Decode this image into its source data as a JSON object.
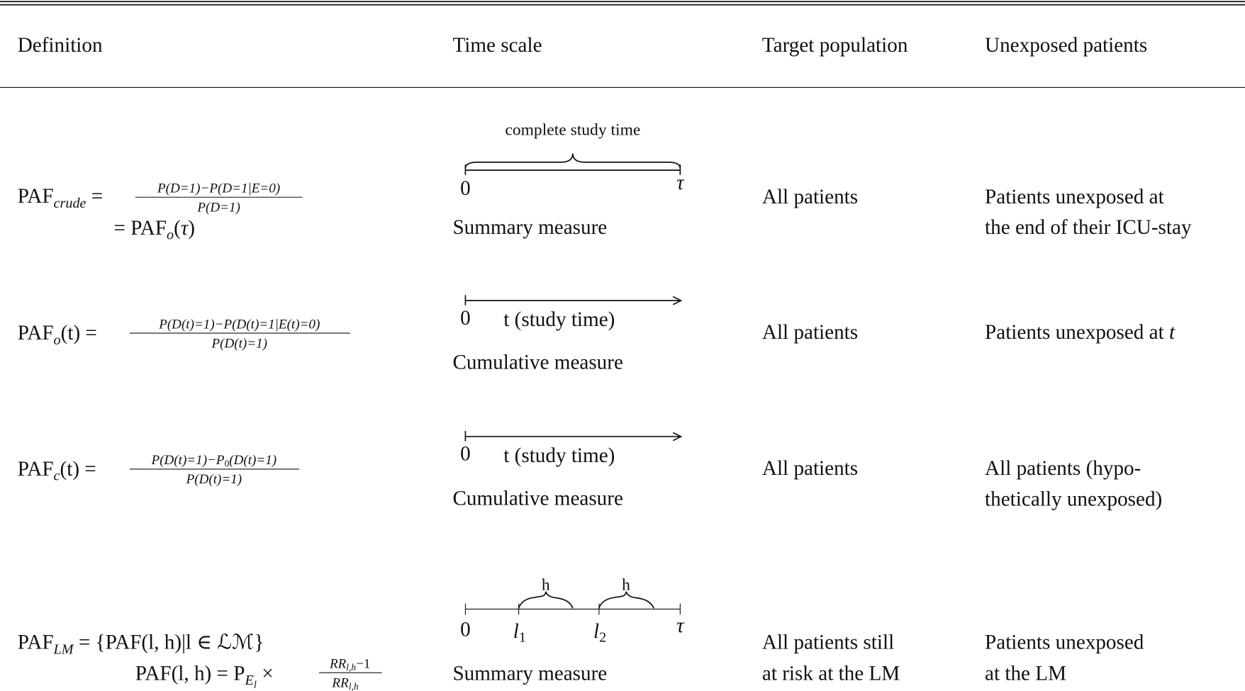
{
  "table": {
    "columns": [
      "Definition",
      "Time scale",
      "Target population",
      "Unexposed patients"
    ],
    "rows": [
      {
        "definition": {
          "line1": [
            "PAF",
            "crude",
            " = "
          ],
          "numerator": [
            "P(D=1)−P(D=1|E=0)"
          ],
          "denominator": [
            "P(D=1)"
          ],
          "line2": [
            "= PAF",
            "o",
            "(",
            "τ",
            ")"
          ]
        },
        "time_scale": {
          "brace_label": "complete study time",
          "start": "0",
          "end": "τ",
          "caption": "Summary measure"
        },
        "target_population": [
          "All patients"
        ],
        "unexposed_patients": [
          "Patients unexposed at",
          "the end of their ICU-stay"
        ]
      },
      {
        "definition": {
          "line1": [
            "PAF",
            "o",
            "(t) = "
          ],
          "numerator": [
            "P(D(t)=1)−P(D(t)=1|E(t)=0)"
          ],
          "denominator": [
            "P(D(t)=1)"
          ]
        },
        "time_scale": {
          "start": "0",
          "axis_label": "t (study time)",
          "caption": "Cumulative measure"
        },
        "target_population": [
          "All patients"
        ],
        "unexposed_patients": [
          [
            "Patients unexposed at ",
            "t"
          ]
        ]
      },
      {
        "definition": {
          "line1": [
            "PAF",
            "c",
            "(t) = "
          ],
          "numerator": [
            "P(D(t)=1)−P",
            "0",
            "(D(t)=1)"
          ],
          "denominator": [
            "P(D(t)=1)"
          ]
        },
        "time_scale": {
          "start": "0",
          "axis_label": "t (study time)",
          "caption": "Cumulative measure"
        },
        "target_population": [
          "All patients"
        ],
        "unexposed_patients": [
          "All patients (hypo-",
          "thetically unexposed)"
        ]
      },
      {
        "definition": {
          "line1": [
            "PAF",
            "LM",
            " = {PAF(l, h)|l ∈ ℒℳ}"
          ],
          "line2": [
            "PAF(l, h) = P",
            "E",
            "l",
            " × "
          ],
          "numerator": [
            "RR",
            "l,h",
            "−1"
          ],
          "denominator": [
            "RR",
            "l,h"
          ]
        },
        "time_scale": {
          "brace_labels": [
            "h",
            "h"
          ],
          "start": "0",
          "landmarks": [
            [
              "l",
              "1"
            ],
            [
              "l",
              "2"
            ]
          ],
          "end": "τ",
          "caption": "Summary measure"
        },
        "target_population": [
          "All patients still",
          "at risk at the LM"
        ],
        "unexposed_patients": [
          "Patients unexposed",
          "at the LM"
        ]
      }
    ]
  }
}
